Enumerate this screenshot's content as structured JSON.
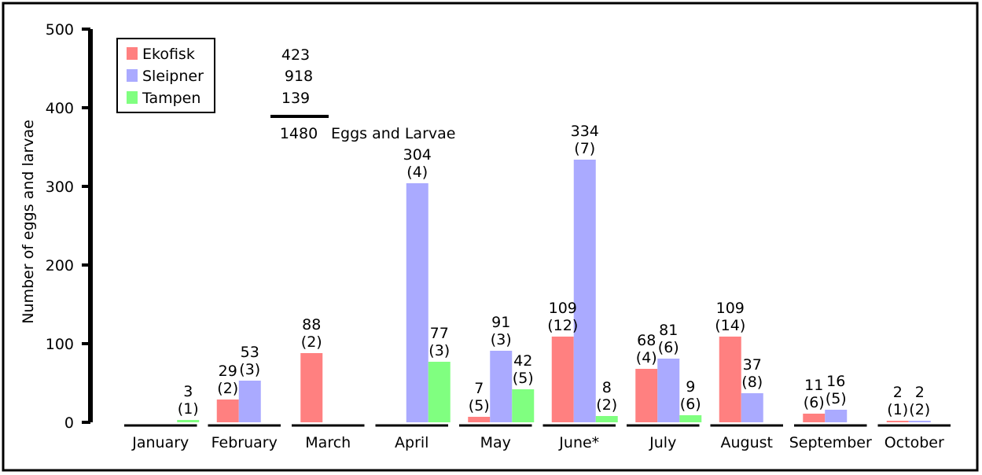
{
  "chart_data": {
    "type": "bar",
    "ylabel": "Number of eggs and larvae",
    "ylim": [
      0,
      500
    ],
    "yticks": [
      "0",
      "100",
      "200",
      "300",
      "400",
      "500"
    ],
    "categories": [
      "January",
      "February",
      "March",
      "April",
      "May",
      "June*",
      "July",
      "August",
      "September",
      "October"
    ],
    "series": [
      {
        "name": "Ekofisk",
        "color": "#ff8080",
        "values": [
          0,
          29,
          88,
          0,
          7,
          109,
          68,
          109,
          11,
          2
        ],
        "labels": [
          "",
          "29",
          "88",
          "",
          "7",
          "109",
          "68",
          "109",
          "11",
          "2"
        ],
        "counts": [
          "",
          "(2)",
          "(2)",
          "",
          "(5)",
          "(12)",
          "(4)",
          "(14)",
          "(6)",
          "(1)"
        ]
      },
      {
        "name": "Sleipner",
        "color": "#aaaaff",
        "values": [
          0,
          53,
          0,
          304,
          91,
          334,
          81,
          37,
          16,
          2
        ],
        "labels": [
          "",
          "53",
          "",
          "304",
          "91",
          "334",
          "81",
          "37",
          "16",
          "2"
        ],
        "counts": [
          "",
          "(3)",
          "",
          "(4)",
          "(3)",
          "(7)",
          "(6)",
          "(8)",
          "(5)",
          "(2)"
        ]
      },
      {
        "name": "Tampen",
        "color": "#80ff80",
        "values": [
          3,
          0,
          0,
          77,
          42,
          8,
          9,
          0,
          0,
          0
        ],
        "labels": [
          "3",
          "",
          "",
          "77",
          "42",
          "8",
          "9",
          "",
          "",
          ""
        ],
        "counts": [
          "(1)",
          "",
          "",
          "(3)",
          "(5)",
          "(2)",
          "(6)",
          "",
          "",
          ""
        ]
      }
    ],
    "legend": {
      "placement": "top-left",
      "entries": [
        "Ekofisk",
        "Sleipner",
        "Tampen"
      ],
      "totals": [
        "423",
        "918",
        "139"
      ],
      "sum": "1480",
      "sum_label": "Eggs and Larvae"
    }
  }
}
